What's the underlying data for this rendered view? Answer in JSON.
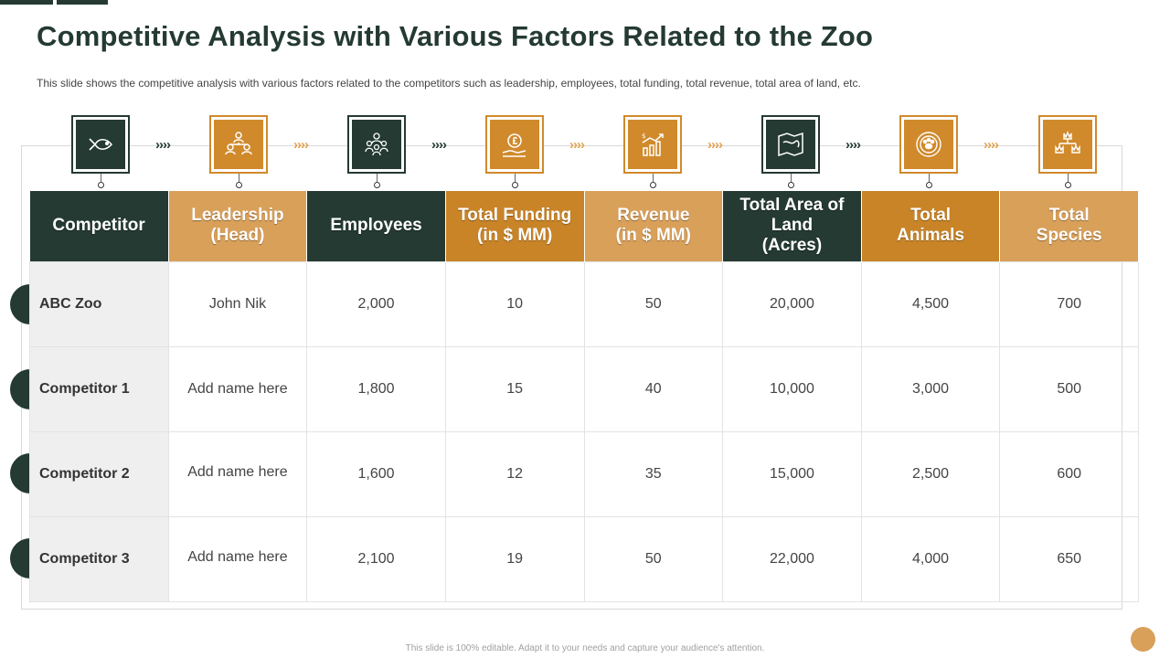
{
  "title": "Competitive Analysis with Various Factors Related to the Zoo",
  "subtitle": "This slide shows the competitive analysis with various factors related to the competitors such as leadership, employees, total funding, total revenue, total area of land, etc.",
  "footer": "This slide is 100% editable. Adapt it to your needs and capture your audience's attention.",
  "colors": {
    "dark": "#243a33",
    "orange": "#c98428",
    "light_orange": "#d9a05a"
  },
  "icons": [
    "fish-icon",
    "org-chart-icon",
    "team-icon",
    "funding-icon",
    "revenue-chart-icon",
    "map-icon",
    "paw-icon",
    "hierarchy-icon"
  ],
  "headers": [
    "Competitor",
    "Leadership\n(Head)",
    "Employees",
    "Total Funding\n(in $ MM)",
    "Revenue\n(in $ MM)",
    "Total Area of\nLand\n(Acres)",
    "Total\nAnimals",
    "Total\nSpecies"
  ],
  "rows": [
    [
      "ABC Zoo",
      "John Nik",
      "2,000",
      "10",
      "50",
      "20,000",
      "4,500",
      "700"
    ],
    [
      "Competitor 1",
      "Add name here",
      "1,800",
      "15",
      "40",
      "10,000",
      "3,000",
      "500"
    ],
    [
      "Competitor 2",
      "Add name here",
      "1,600",
      "12",
      "35",
      "15,000",
      "2,500",
      "600"
    ],
    [
      "Competitor 3",
      "Add name here",
      "2,100",
      "19",
      "50",
      "22,000",
      "4,000",
      "650"
    ]
  ]
}
